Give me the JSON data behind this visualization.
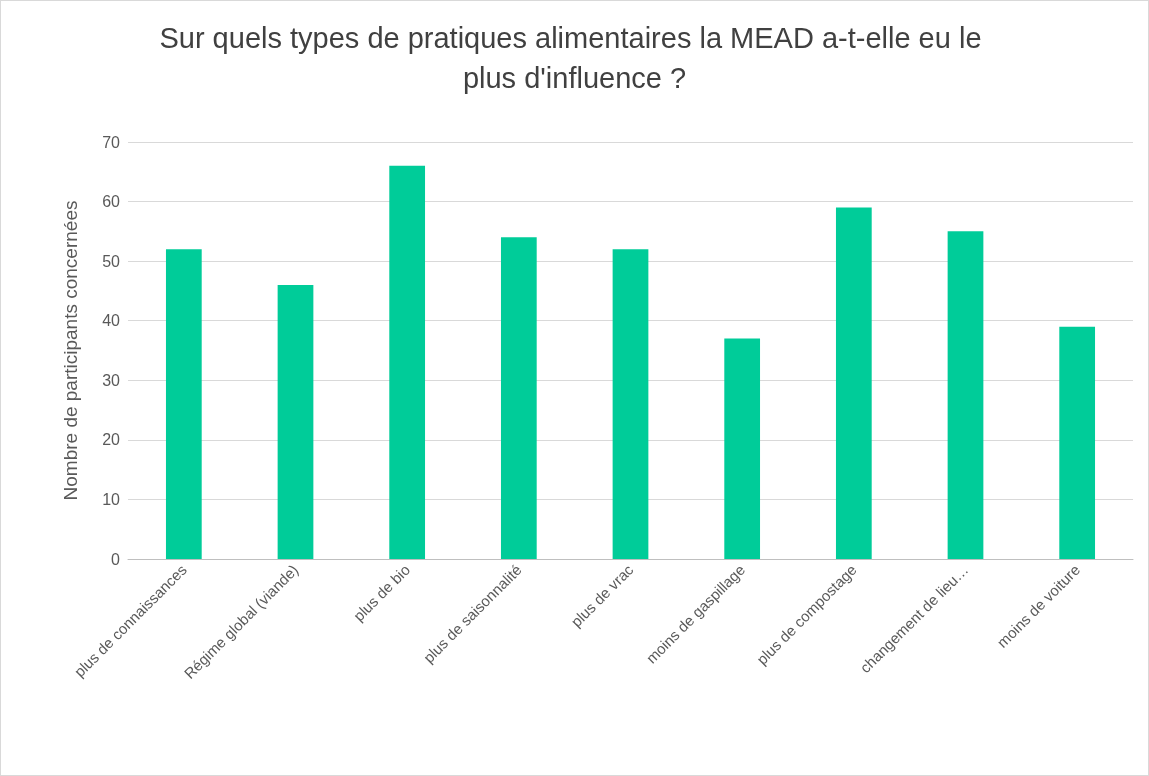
{
  "chart_data": {
    "type": "bar",
    "title": "Sur quels types de pratiques alimentaires la MEAD a-t-elle eu le plus d'influence ?",
    "ylabel": "Nombre de participants concernées",
    "categories": [
      "plus de connaissances",
      "Régime global (viande)",
      "plus de bio",
      "plus de saisonnalité",
      "plus de vrac",
      "moins de gaspillage",
      "plus de compostage",
      "changement de lieu…",
      "moins de voiture"
    ],
    "values": [
      52,
      46,
      66,
      54,
      52,
      37,
      59,
      55,
      39
    ],
    "color": "#00cc99",
    "ylim": [
      0,
      70
    ],
    "yticks": [
      0,
      10,
      20,
      30,
      40,
      50,
      60,
      70
    ],
    "grid": "y"
  }
}
